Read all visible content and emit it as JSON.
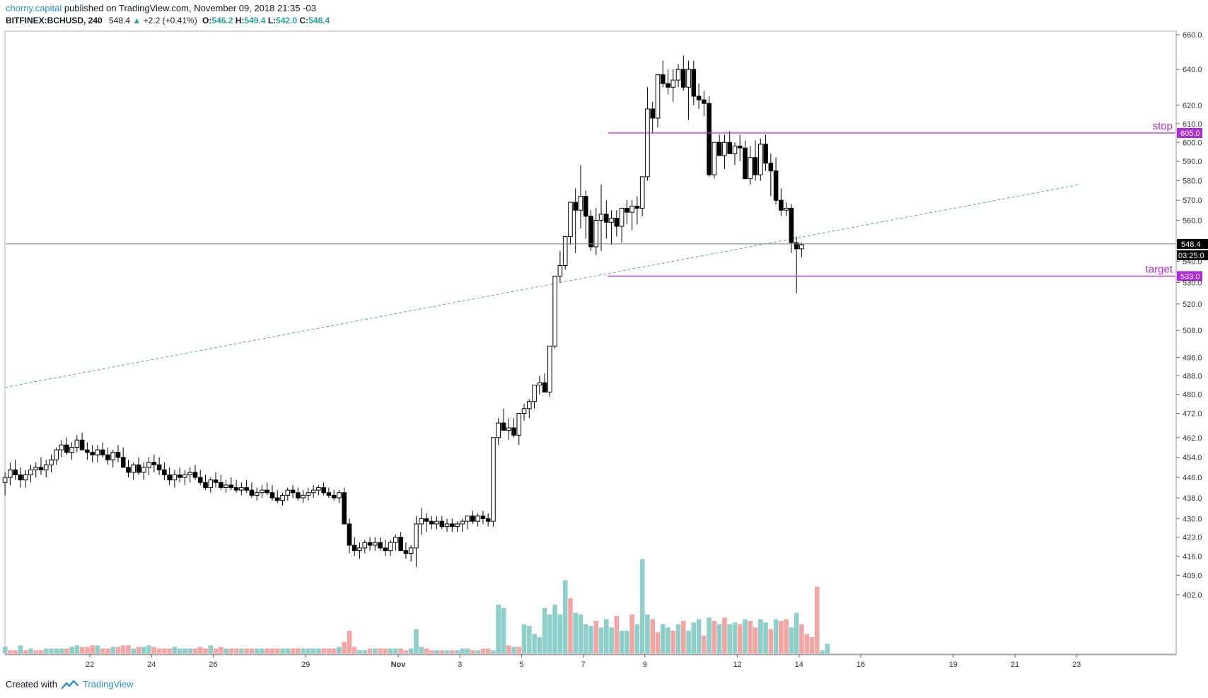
{
  "header": {
    "author": "chorny.capital",
    "published": "published on TradingView.com, November 09, 2018 21:35 -03",
    "symbol": "BITFINEX:BCHUSD, 240",
    "last": "548.4",
    "change_arrow": "▲",
    "change": "+2.2 (+0.41%)",
    "o_label": "O:",
    "o_value": "546.2",
    "h_label": "H:",
    "h_value": "549.4",
    "l_label": "L:",
    "l_value": "542.0",
    "c_label": "C:",
    "c_value": "548.4"
  },
  "footer": {
    "created_with": "Created with",
    "brand": "TradingView"
  },
  "colors": {
    "up_volume": "#8ecfc9",
    "down_volume": "#f4a6a4",
    "level_line": "#b02bd6",
    "trend_line": "#5aa7a0",
    "candle": "#000000"
  },
  "chart_data": {
    "type": "candlestick",
    "title": "BITFINEX:BCHUSD, 240",
    "y_ticks": [
      660,
      640,
      620,
      610,
      600,
      590,
      580,
      570,
      560,
      540,
      530,
      520,
      508,
      496,
      488,
      480,
      472,
      462,
      454,
      446,
      438,
      430,
      423,
      416,
      409,
      402
    ],
    "y_tick_labels": [
      "660.0",
      "640.0",
      "620.0",
      "610.0",
      "600.0",
      "590.0",
      "580.0",
      "570.0",
      "560.0",
      "540.0",
      "530.0",
      "520.0",
      "508.0",
      "496.0",
      "488.0",
      "480.0",
      "472.0",
      "462.0",
      "454.0",
      "446.0",
      "438.0",
      "430.0",
      "423.0",
      "416.0",
      "409.0",
      "402.0"
    ],
    "x_labels": [
      {
        "text": "22",
        "day": 22
      },
      {
        "text": "24",
        "day": 24
      },
      {
        "text": "26",
        "day": 26
      },
      {
        "text": "29",
        "day": 29
      },
      {
        "text": "Nov",
        "day": 32
      },
      {
        "text": "3",
        "day": 34
      },
      {
        "text": "5",
        "day": 36
      },
      {
        "text": "7",
        "day": 38
      },
      {
        "text": "9",
        "day": 40
      },
      {
        "text": "12",
        "day": 43
      },
      {
        "text": "14",
        "day": 45
      },
      {
        "text": "16",
        "day": 47
      },
      {
        "text": "19",
        "day": 50
      },
      {
        "text": "21",
        "day": 52
      },
      {
        "text": "23",
        "day": 54
      }
    ],
    "levels": [
      {
        "name": "stop",
        "value": 605.0,
        "label": "605.0",
        "from_day": 38.8
      },
      {
        "name": "target",
        "value": 533.0,
        "label": "533.0",
        "from_day": 38.8
      }
    ],
    "current_price": {
      "value": 548.4,
      "label": "548.4",
      "countdown": "03:25:0"
    },
    "trend_line": {
      "from_day": 19.25,
      "from_price": 483,
      "to_day": 54.1,
      "to_price": 578
    },
    "candles_ohlc": [
      [
        444,
        448,
        439,
        446
      ],
      [
        446,
        452,
        443,
        449
      ],
      [
        449,
        453,
        445,
        447
      ],
      [
        447,
        450,
        442,
        445
      ],
      [
        445,
        449,
        442,
        447
      ],
      [
        447,
        451,
        444,
        449
      ],
      [
        449,
        452,
        446,
        450
      ],
      [
        450,
        454,
        447,
        449
      ],
      [
        449,
        453,
        446,
        451
      ],
      [
        451,
        455,
        448,
        453
      ],
      [
        453,
        458,
        451,
        457
      ],
      [
        457,
        461,
        454,
        459
      ],
      [
        459,
        462,
        455,
        456
      ],
      [
        456,
        460,
        453,
        458
      ],
      [
        458,
        463,
        456,
        461
      ],
      [
        461,
        464,
        457,
        457
      ],
      [
        457,
        460,
        453,
        456
      ],
      [
        456,
        459,
        452,
        455
      ],
      [
        455,
        459,
        452,
        457
      ],
      [
        457,
        460,
        454,
        455
      ],
      [
        455,
        458,
        451,
        453
      ],
      [
        453,
        457,
        450,
        456
      ],
      [
        456,
        459,
        452,
        454
      ],
      [
        454,
        458,
        451,
        450
      ],
      [
        450,
        453,
        446,
        448
      ],
      [
        448,
        452,
        445,
        451
      ],
      [
        451,
        454,
        447,
        448
      ],
      [
        448,
        452,
        445,
        450
      ],
      [
        450,
        454,
        447,
        452
      ],
      [
        452,
        455,
        448,
        451
      ],
      [
        451,
        454,
        447,
        449
      ],
      [
        449,
        452,
        445,
        447
      ],
      [
        447,
        450,
        443,
        445
      ],
      [
        445,
        449,
        442,
        447
      ],
      [
        447,
        450,
        444,
        446
      ],
      [
        446,
        449,
        443,
        447
      ],
      [
        447,
        450,
        444,
        448
      ],
      [
        448,
        451,
        445,
        446
      ],
      [
        446,
        449,
        443,
        444
      ],
      [
        444,
        447,
        441,
        442
      ],
      [
        442,
        446,
        440,
        445
      ],
      [
        445,
        448,
        442,
        444
      ],
      [
        444,
        447,
        441,
        442
      ],
      [
        442,
        445,
        440,
        443
      ],
      [
        443,
        446,
        441,
        442
      ],
      [
        442,
        445,
        440,
        441
      ],
      [
        441,
        444,
        439,
        442
      ],
      [
        442,
        445,
        440,
        441
      ],
      [
        441,
        444,
        438,
        439
      ],
      [
        439,
        442,
        437,
        440
      ],
      [
        440,
        443,
        438,
        441
      ],
      [
        441,
        444,
        439,
        440
      ],
      [
        440,
        443,
        437,
        438
      ],
      [
        438,
        441,
        436,
        437
      ],
      [
        437,
        440,
        435,
        439
      ],
      [
        439,
        442,
        437,
        441
      ],
      [
        441,
        443,
        438,
        440
      ],
      [
        440,
        442,
        437,
        438
      ],
      [
        438,
        441,
        436,
        439
      ],
      [
        439,
        442,
        437,
        440
      ],
      [
        440,
        443,
        438,
        441
      ],
      [
        441,
        443,
        439,
        442
      ],
      [
        442,
        444,
        439,
        440
      ],
      [
        440,
        442,
        438,
        439
      ],
      [
        439,
        441,
        437,
        438
      ],
      [
        438,
        441,
        436,
        440
      ],
      [
        440,
        442,
        434,
        428
      ],
      [
        428,
        430,
        417,
        420
      ],
      [
        420,
        423,
        416,
        418
      ],
      [
        418,
        421,
        415,
        419
      ],
      [
        419,
        422,
        417,
        421
      ],
      [
        421,
        423,
        418,
        420
      ],
      [
        420,
        423,
        418,
        421
      ],
      [
        421,
        423,
        418,
        419
      ],
      [
        419,
        422,
        416,
        418
      ],
      [
        418,
        422,
        416,
        421
      ],
      [
        421,
        424,
        418,
        423
      ],
      [
        423,
        425,
        419,
        418
      ],
      [
        418,
        421,
        415,
        417
      ],
      [
        417,
        420,
        414,
        419
      ],
      [
        419,
        431,
        412,
        428
      ],
      [
        428,
        434,
        424,
        430
      ],
      [
        430,
        432,
        425,
        429
      ],
      [
        429,
        431,
        426,
        428
      ],
      [
        428,
        431,
        426,
        429
      ],
      [
        429,
        431,
        426,
        427
      ],
      [
        427,
        430,
        425,
        428
      ],
      [
        428,
        430,
        425,
        427
      ],
      [
        427,
        429,
        425,
        428
      ],
      [
        428,
        430,
        425,
        429
      ],
      [
        429,
        431,
        426,
        431
      ],
      [
        431,
        433,
        428,
        429
      ],
      [
        429,
        432,
        427,
        431
      ],
      [
        431,
        433,
        428,
        430
      ],
      [
        430,
        432,
        427,
        429
      ],
      [
        429,
        431,
        427,
        462
      ],
      [
        462,
        470,
        459,
        468
      ],
      [
        468,
        474,
        465,
        465
      ],
      [
        465,
        470,
        461,
        466
      ],
      [
        466,
        470,
        462,
        463
      ],
      [
        463,
        468,
        459,
        472
      ],
      [
        472,
        476,
        469,
        474
      ],
      [
        474,
        478,
        470,
        477
      ],
      [
        477,
        483,
        474,
        484
      ],
      [
        484,
        488,
        480,
        485
      ],
      [
        485,
        489,
        481,
        481
      ],
      [
        481,
        497,
        479,
        501
      ],
      [
        501,
        533,
        500,
        533
      ],
      [
        533,
        545,
        530,
        538
      ],
      [
        538,
        552,
        536,
        552
      ],
      [
        552,
        568,
        548,
        569
      ],
      [
        569,
        576,
        544,
        565
      ],
      [
        565,
        588,
        556,
        572
      ],
      [
        572,
        575,
        551,
        562
      ],
      [
        562,
        565,
        545,
        547
      ],
      [
        547,
        566,
        543,
        560
      ],
      [
        560,
        578,
        545,
        563
      ],
      [
        563,
        570,
        551,
        559
      ],
      [
        559,
        565,
        548,
        561
      ],
      [
        561,
        565,
        552,
        557
      ],
      [
        557,
        564,
        549,
        566
      ],
      [
        566,
        570,
        558,
        564
      ],
      [
        564,
        570,
        555,
        567
      ],
      [
        567,
        572,
        558,
        566
      ],
      [
        566,
        580,
        562,
        582
      ],
      [
        582,
        630,
        580,
        618
      ],
      [
        618,
        622,
        605,
        613
      ],
      [
        613,
        628,
        608,
        637
      ],
      [
        637,
        645,
        630,
        632
      ],
      [
        632,
        640,
        626,
        630
      ],
      [
        630,
        640,
        622,
        634
      ],
      [
        634,
        643,
        630,
        640
      ],
      [
        640,
        648,
        628,
        630
      ],
      [
        630,
        645,
        612,
        640
      ],
      [
        640,
        645,
        620,
        625
      ],
      [
        625,
        632,
        618,
        623
      ],
      [
        623,
        628,
        614,
        621
      ],
      [
        621,
        625,
        582,
        583
      ],
      [
        583,
        600,
        581,
        600
      ],
      [
        600,
        604,
        593,
        593
      ],
      [
        593,
        604,
        586,
        600
      ],
      [
        600,
        606,
        596,
        594
      ],
      [
        594,
        600,
        588,
        598
      ],
      [
        598,
        604,
        590,
        597
      ],
      [
        597,
        601,
        594,
        581
      ],
      [
        581,
        598,
        578,
        592
      ],
      [
        592,
        601,
        580,
        583
      ],
      [
        583,
        602,
        580,
        599
      ],
      [
        599,
        604,
        585,
        589
      ],
      [
        589,
        594,
        572,
        585
      ],
      [
        585,
        592,
        568,
        570
      ],
      [
        570,
        576,
        562,
        565
      ],
      [
        565,
        569,
        562,
        566
      ],
      [
        566,
        568,
        544,
        549
      ],
      [
        549,
        552,
        525,
        546
      ],
      [
        546,
        549,
        542,
        548
      ]
    ],
    "volumes": [
      4,
      2,
      2,
      5,
      2,
      3,
      2,
      2,
      3,
      3,
      3,
      3,
      3,
      4,
      5,
      4,
      4,
      5,
      5,
      3,
      3,
      4,
      4,
      5,
      5,
      3,
      4,
      4,
      5,
      4,
      3,
      3,
      3,
      4,
      3,
      3,
      3,
      3,
      4,
      3,
      5,
      3,
      4,
      3,
      3,
      3,
      3,
      3,
      3,
      3,
      3,
      3,
      3,
      3,
      3,
      3,
      3,
      3,
      3,
      3,
      3,
      3,
      3,
      3,
      3,
      4,
      7,
      14,
      4,
      2,
      2,
      3,
      3,
      3,
      3,
      3,
      3,
      3,
      2,
      3,
      15,
      4,
      3,
      2,
      2,
      2,
      2,
      2,
      2,
      3,
      3,
      2,
      2,
      3,
      3,
      2,
      30,
      28,
      5,
      4,
      4,
      18,
      17,
      12,
      10,
      28,
      24,
      30,
      24,
      45,
      34,
      25,
      24,
      18,
      17,
      20,
      16,
      21,
      16,
      23,
      14,
      14,
      24,
      18,
      58,
      24,
      21,
      13,
      18,
      16,
      14,
      18,
      20,
      14,
      19,
      21,
      11,
      22,
      20,
      18,
      22,
      18,
      19,
      18,
      21,
      20,
      16,
      21,
      19,
      15,
      21,
      20,
      21,
      16,
      25,
      18,
      12,
      10,
      41,
      2,
      6
    ],
    "volume_up": [
      true,
      false,
      false,
      true,
      false,
      true,
      false,
      false,
      true,
      true,
      true,
      true,
      false,
      true,
      true,
      false,
      false,
      false,
      true,
      false,
      false,
      true,
      false,
      false,
      false,
      true,
      false,
      true,
      true,
      false,
      false,
      false,
      false,
      true,
      true,
      true,
      true,
      false,
      false,
      false,
      true,
      false,
      false,
      true,
      false,
      false,
      true,
      false,
      false,
      true,
      true,
      false,
      false,
      false,
      true,
      true,
      false,
      false,
      true,
      true,
      true,
      true,
      false,
      false,
      false,
      true,
      false,
      false,
      false,
      true,
      true,
      false,
      true,
      false,
      false,
      true,
      true,
      false,
      false,
      true,
      true,
      true,
      false,
      false,
      true,
      false,
      true,
      false,
      true,
      true,
      true,
      false,
      true,
      false,
      false,
      true,
      true,
      true,
      false,
      true,
      false,
      true,
      true,
      true,
      true,
      true,
      true,
      true,
      true,
      true,
      false,
      true,
      true,
      true,
      true,
      false,
      true,
      true,
      true,
      false,
      true,
      true,
      false,
      true,
      true,
      true,
      false,
      false,
      true,
      true,
      false,
      true,
      false,
      true,
      true,
      true,
      false,
      true,
      false,
      true,
      false,
      true,
      true,
      false,
      true,
      false,
      false,
      true,
      true,
      false,
      true,
      false,
      false,
      true,
      true,
      false,
      false,
      false,
      false,
      true,
      true
    ]
  }
}
